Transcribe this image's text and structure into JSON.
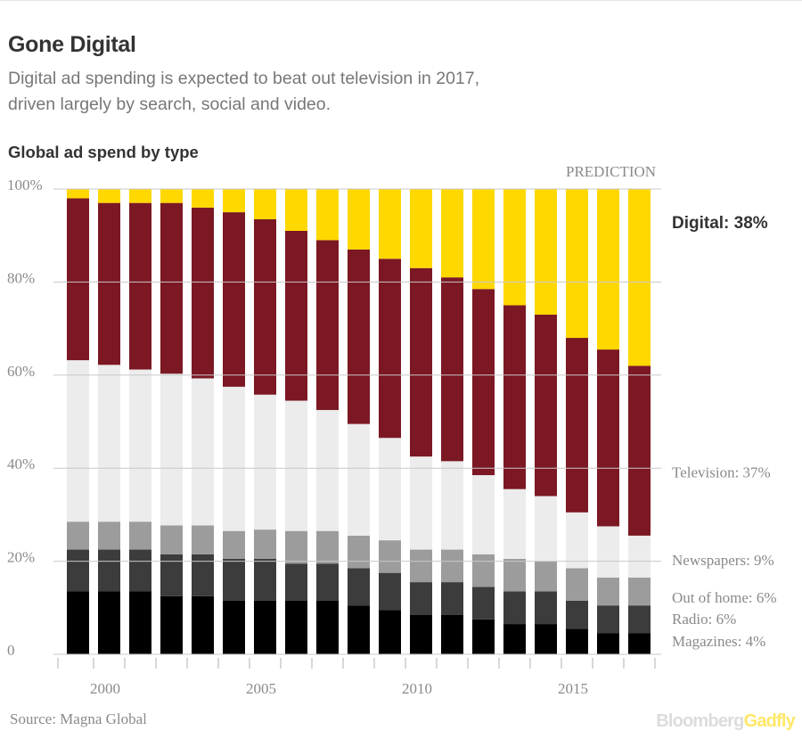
{
  "header": {
    "title": "Gone Digital",
    "subtitle": "Digital ad spending is expected to beat out television in 2017, driven largely by search, social and video."
  },
  "footer": {
    "source": "Source: Magna Global",
    "logo_brand": "Bloomberg",
    "logo_product": "Gadfly"
  },
  "colors": {
    "magazines": "#000000",
    "radio": "#3c3c3c",
    "out_of_home": "#9c9c9c",
    "newspapers": "#ececec",
    "television": "#7b1823",
    "digital": "#ffd800"
  },
  "chart_data": {
    "type": "bar",
    "stacked": true,
    "title": "Global ad spend by type",
    "annotation": "PREDICTION",
    "ylim": [
      0,
      100
    ],
    "y_ticks": [
      "0",
      "20%",
      "40%",
      "60%",
      "80%",
      "100%"
    ],
    "y_tick_values": [
      0,
      20,
      40,
      60,
      80,
      100
    ],
    "x_tick_labels": [
      "2000",
      "2005",
      "2010",
      "2015"
    ],
    "x_tick_values": [
      2000,
      2005,
      2010,
      2015
    ],
    "categories": [
      1999,
      2000,
      2001,
      2002,
      2003,
      2004,
      2005,
      2006,
      2007,
      2008,
      2009,
      2010,
      2011,
      2012,
      2013,
      2014,
      2015,
      2016,
      2017
    ],
    "series": [
      {
        "key": "magazines",
        "values": [
          13.5,
          13.5,
          13.5,
          12.5,
          12.5,
          11.5,
          11.5,
          11.5,
          11.5,
          10.5,
          9.5,
          8.5,
          8.5,
          7.5,
          6.5,
          6.5,
          5.5,
          4.5,
          4.5
        ]
      },
      {
        "key": "radio",
        "values": [
          9,
          9,
          9,
          9,
          9,
          9,
          9,
          8,
          8,
          8,
          8,
          7,
          7,
          7,
          7,
          7,
          6,
          6,
          6
        ]
      },
      {
        "key": "out_of_home",
        "values": [
          6,
          6,
          6,
          6.2,
          6.2,
          6,
          6.3,
          7,
          7,
          7,
          7,
          7,
          7,
          7,
          7,
          6.5,
          7,
          6,
          6
        ]
      },
      {
        "key": "newspapers",
        "values": [
          34.7,
          33.7,
          32.7,
          32.6,
          31.6,
          31,
          29,
          28,
          26,
          24,
          22,
          20,
          19,
          17,
          15,
          14,
          12,
          11,
          9
        ]
      },
      {
        "key": "television",
        "values": [
          34.8,
          34.8,
          35.8,
          36.7,
          36.7,
          37.5,
          37.7,
          36.5,
          36.5,
          37.5,
          38.5,
          40.5,
          39.5,
          40,
          39.5,
          39,
          37.5,
          38,
          36.5
        ]
      },
      {
        "key": "digital",
        "values": [
          2,
          3,
          3,
          3,
          4,
          5,
          6.5,
          9,
          11,
          13,
          15,
          17,
          19,
          21.5,
          25,
          27,
          32,
          34.5,
          38
        ]
      }
    ],
    "end_labels": [
      {
        "key": "digital",
        "text": "Digital: 38%",
        "bold": true
      },
      {
        "key": "television",
        "text": "Television: 37%"
      },
      {
        "key": "newspapers",
        "text": "Newspapers: 9%"
      },
      {
        "key": "out_of_home",
        "text": "Out of home: 6%"
      },
      {
        "key": "radio",
        "text": "Radio: 6%"
      },
      {
        "key": "magazines",
        "text": "Magazines: 4%"
      }
    ]
  }
}
